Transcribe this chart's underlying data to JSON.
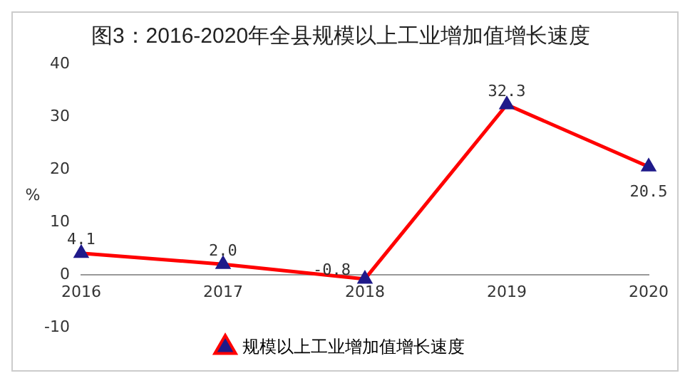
{
  "chart_data": {
    "type": "line",
    "title": "图3：2016-2020年全县规模以上工业增加值增长速度",
    "ylabel": "%",
    "categories": [
      "2016",
      "2017",
      "2018",
      "2019",
      "2020"
    ],
    "series": [
      {
        "name": "规模以上工业增加值增长速度",
        "color": "#ff0000",
        "values": [
          4.1,
          2.0,
          -0.8,
          32.3,
          20.5
        ],
        "value_labels": [
          "4.1",
          "2.0",
          "-0.8",
          "32.3",
          "20.5"
        ]
      }
    ],
    "ylim": [
      -10,
      40
    ],
    "yticks": [
      -10,
      0,
      10,
      20,
      30,
      40
    ],
    "grid": false,
    "legend": "bottom",
    "marker": "triangle",
    "line_style": "solid"
  }
}
